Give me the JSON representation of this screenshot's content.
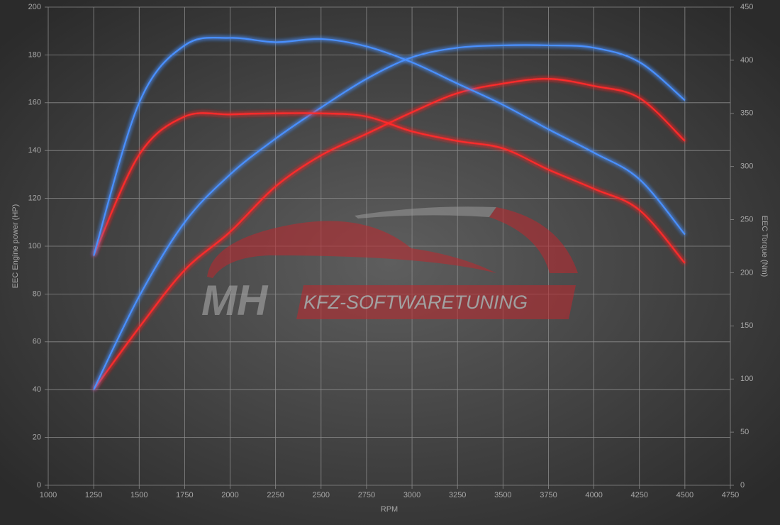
{
  "chart_data": {
    "type": "line",
    "xlabel": "RPM",
    "ylabel": "EEC Engine power (HP)",
    "y2label": "EEC Torque (Nm)",
    "logo": {
      "left": "MH",
      "right": "KFZ-SOFTWARETUNING"
    },
    "x": [
      1250,
      1500,
      1750,
      2000,
      2250,
      2500,
      2750,
      3000,
      3250,
      3500,
      3750,
      4000,
      4250,
      4500
    ],
    "xlim": [
      1000,
      4750
    ],
    "xticks": [
      1000,
      1250,
      1500,
      1750,
      2000,
      2250,
      2500,
      2750,
      3000,
      3250,
      3500,
      3750,
      4000,
      4250,
      4500,
      4750
    ],
    "ylim": [
      0,
      200
    ],
    "yticks": [
      0,
      20,
      40,
      60,
      80,
      100,
      120,
      140,
      160,
      180,
      200
    ],
    "y2lim": [
      0,
      450
    ],
    "y2ticks": [
      0,
      50,
      100,
      150,
      200,
      250,
      300,
      350,
      400,
      450
    ],
    "grid": true,
    "series": [
      {
        "color": "#ff2a2a",
        "axis": "y",
        "values": [
          40,
          66,
          90,
          106,
          125,
          138,
          147,
          156,
          164,
          168,
          170,
          167,
          162,
          144
        ]
      },
      {
        "color": "#4a90ff",
        "axis": "y",
        "values": [
          40,
          79,
          110,
          130,
          145,
          158,
          170,
          179,
          183,
          184,
          184,
          183,
          177,
          161
        ]
      },
      {
        "color": "#ff2a2a",
        "axis": "y2",
        "values": [
          216,
          311,
          347,
          349,
          350,
          350,
          347,
          333,
          324,
          317,
          297,
          279,
          259,
          209
        ]
      },
      {
        "color": "#4a90ff",
        "axis": "y2",
        "values": [
          216,
          360,
          414,
          421,
          417,
          420,
          413,
          398,
          378,
          358,
          335,
          313,
          288,
          236
        ]
      }
    ]
  }
}
